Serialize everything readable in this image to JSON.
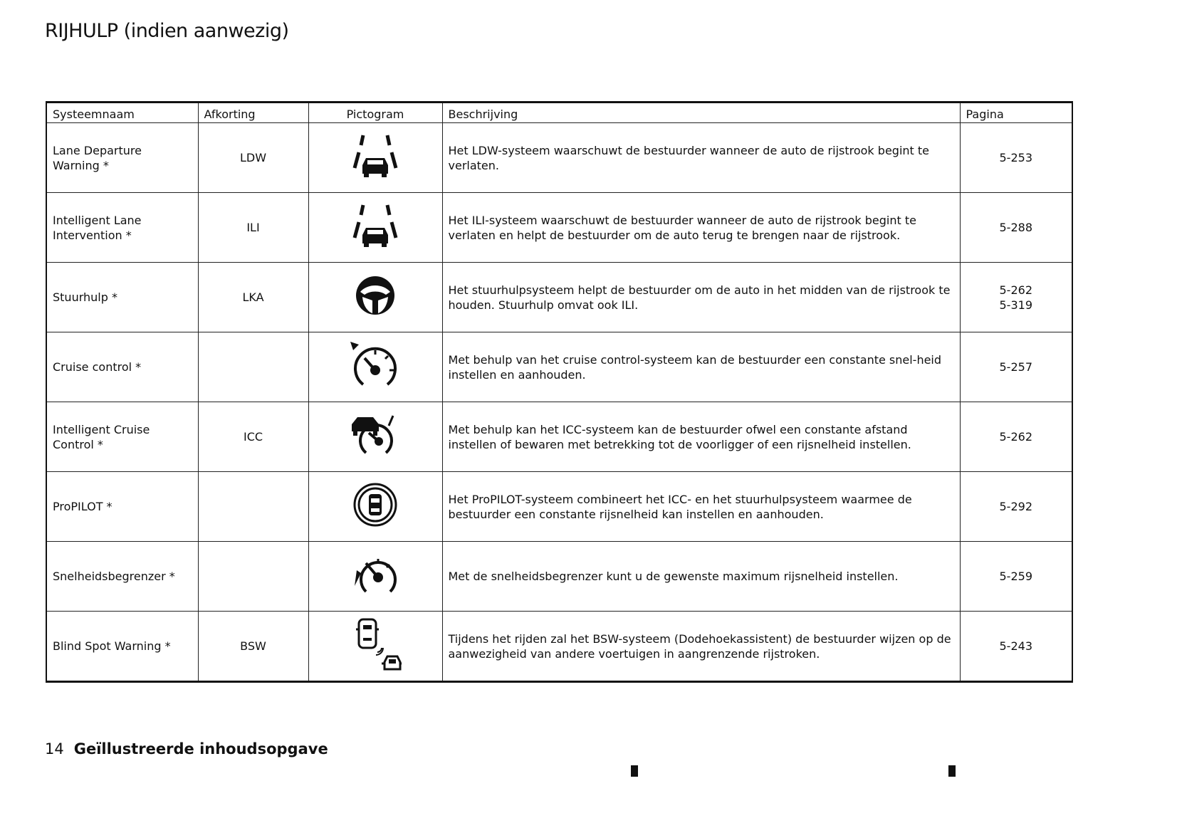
{
  "page_title": "RIJHULP (indien aanwezig)",
  "table": {
    "headers": [
      "Systeemnaam",
      "Afkorting",
      "Pictogram",
      "Beschrijving",
      "Pagina"
    ],
    "rows": [
      {
        "name": "Lane Departure Warning *",
        "abbr": "LDW",
        "icon": "lane-departure-icon",
        "desc": "Het LDW-systeem waarschuwt de bestuurder wanneer de auto de rijstrook begint te verlaten.",
        "page": "5-253"
      },
      {
        "name": "Intelligent Lane Intervention *",
        "abbr": "ILI",
        "icon": "lane-intervention-icon",
        "desc": "Het ILI-systeem waarschuwt de bestuurder wanneer de auto de rijstrook begint te verlaten en helpt de bestuurder om de auto terug te brengen naar de rijstrook.",
        "page": "5-288"
      },
      {
        "name": "Stuurhulp *",
        "abbr": "LKA",
        "icon": "steering-wheel-icon",
        "desc": "Het stuurhulpsysteem helpt de bestuurder om de auto in het midden van de rijstrook te houden. Stuurhulp omvat ook ILI.",
        "page": "5-262",
        "page2": "5-319"
      },
      {
        "name": "Cruise control *",
        "abbr": "",
        "icon": "cruise-control-icon",
        "desc": "Met behulp van het cruise control-systeem kan de bestuurder een constante snel-heid instellen en aanhouden.",
        "page": "5-257"
      },
      {
        "name": "Intelligent Cruise Control *",
        "abbr": "ICC",
        "icon": "intelligent-cruise-control-icon",
        "desc": "Met behulp kan het ICC-systeem kan de bestuurder ofwel een constante afstand instellen of bewaren met betrekking tot de voorligger of een rijsnelheid instellen.",
        "page": "5-262"
      },
      {
        "name": "ProPILOT *",
        "abbr": "",
        "icon": "propilot-icon",
        "desc": "Het ProPILOT-systeem combineert het ICC- en het stuurhulpsysteem waarmee de bestuurder een constante rijsnelheid kan instellen en aanhouden.",
        "page": "5-292"
      },
      {
        "name": "Snelheidsbegrenzer *",
        "abbr": "",
        "icon": "speed-limiter-icon",
        "desc": "Met de snelheidsbegrenzer kunt u de gewenste maximum rijsnelheid instellen.",
        "page": "5-259"
      },
      {
        "name": "Blind Spot Warning *",
        "abbr": "BSW",
        "icon": "blind-spot-warning-icon",
        "desc": "Tijdens het rijden zal het BSW-systeem (Dodehoekassistent) de bestuurder wijzen op de aanwezigheid van andere voertuigen in aangrenzende rijstroken.",
        "page": "5-243"
      }
    ]
  },
  "footer": {
    "page_number": "14",
    "section": "Geïllustreerde inhoudsopgave"
  }
}
